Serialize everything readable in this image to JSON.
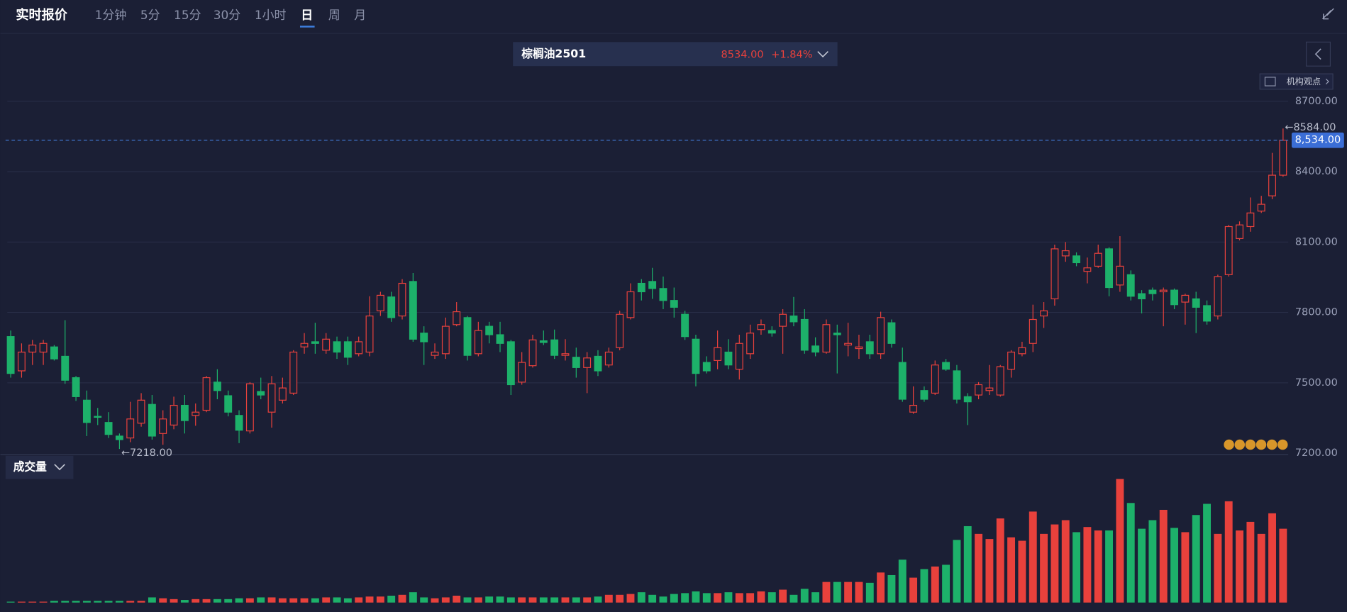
{
  "tabs": {
    "title": "实时报价",
    "items": [
      "1分钟",
      "5分",
      "15分",
      "30分",
      "1小时",
      "日",
      "周",
      "月"
    ],
    "active": 5
  },
  "header": {
    "name": "棕榈油2501",
    "price": "8534.00",
    "change": "+1.84%"
  },
  "opinion_button": "机构观点",
  "volume_label": "成交量",
  "chart_data": {
    "type": "candlestick",
    "up_color": "#e8413c",
    "down_color": "#1db16a",
    "grid": true,
    "ylim": [
      7200,
      8700
    ],
    "yticks": [
      {
        "value": 7200,
        "label": "7200.00"
      },
      {
        "value": 7500,
        "label": "7500.00"
      },
      {
        "value": 7800,
        "label": "7800.00"
      },
      {
        "value": 8100,
        "label": "8100.00"
      },
      {
        "value": 8400,
        "label": "8400.00"
      },
      {
        "value": 8700,
        "label": "8700.00"
      }
    ],
    "last_price": {
      "value": 8534,
      "label": "8,534.00"
    },
    "high_label": {
      "value": 8584,
      "label": "←8584.00"
    },
    "low_label": {
      "value": 7218,
      "label": "←7218.00"
    },
    "open": [
      7697,
      7551,
      7631,
      7631,
      7653,
      7613,
      7522,
      7426,
      7357,
      7331,
      7273,
      7265,
      7328,
      7408,
      7284,
      7320,
      7404,
      7361,
      7383,
      7503,
      7445,
      7361,
      7295,
      7463,
      7375,
      7426,
      7456,
      7653,
      7675,
      7639,
      7675,
      7675,
      7624,
      7631,
      7807,
      7866,
      7785,
      7932,
      7712,
      7617,
      7624,
      7748,
      7778,
      7624,
      7741,
      7705,
      7675,
      7503,
      7573,
      7679,
      7683,
      7617,
      7609,
      7565,
      7613,
      7576,
      7650,
      7778,
      7924,
      7932,
      7902,
      7851,
      7792,
      7686,
      7587,
      7595,
      7631,
      7558,
      7624,
      7727,
      7723,
      7741,
      7785,
      7770,
      7657,
      7631,
      7712,
      7661,
      7646,
      7675,
      7624,
      7756,
      7587,
      7375,
      7467,
      7456,
      7587,
      7551,
      7441,
      7448,
      7467,
      7448,
      7558,
      7624,
      7668,
      7785,
      7858,
      8041,
      8041,
      7975,
      7997,
      8071,
      7917,
      7961,
      7880,
      7895,
      7888,
      7895,
      7844,
      7858,
      7829,
      7785,
      7961,
      8115,
      8166,
      8232,
      8297,
      8385
    ],
    "high": [
      7723,
      7668,
      7683,
      7683,
      7661,
      7767,
      7529,
      7467,
      7393,
      7375,
      7284,
      7419,
      7456,
      7448,
      7383,
      7441,
      7448,
      7412,
      7529,
      7558,
      7467,
      7383,
      7503,
      7522,
      7529,
      7522,
      7639,
      7712,
      7756,
      7712,
      7697,
      7697,
      7697,
      7869,
      7888,
      7888,
      7942,
      7968,
      7741,
      7668,
      7778,
      7844,
      7785,
      7760,
      7760,
      7760,
      7683,
      7631,
      7705,
      7723,
      7727,
      7686,
      7650,
      7631,
      7639,
      7650,
      7807,
      7924,
      7942,
      7990,
      7953,
      7906,
      7807,
      7705,
      7613,
      7723,
      7686,
      7705,
      7748,
      7770,
      7741,
      7814,
      7866,
      7814,
      7694,
      7770,
      7748,
      7756,
      7705,
      7705,
      7803,
      7770,
      7650,
      7485,
      7485,
      7595,
      7602,
      7576,
      7456,
      7503,
      7576,
      7576,
      7639,
      7675,
      7833,
      7844,
      8089,
      8100,
      8056,
      8034,
      8089,
      8078,
      8125,
      7979,
      7895,
      7906,
      7906,
      7902,
      7880,
      7888,
      7851,
      7961,
      8173,
      8188,
      8290,
      8297,
      8480,
      8584
    ],
    "low": [
      7522,
      7522,
      7576,
      7576,
      7595,
      7496,
      7423,
      7273,
      7320,
      7265,
      7218,
      7247,
      7313,
      7258,
      7236,
      7302,
      7284,
      7317,
      7375,
      7430,
      7357,
      7243,
      7284,
      7430,
      7309,
      7412,
      7448,
      7624,
      7624,
      7624,
      7602,
      7576,
      7613,
      7613,
      7785,
      7760,
      7770,
      7675,
      7576,
      7602,
      7602,
      7741,
      7595,
      7613,
      7668,
      7631,
      7448,
      7492,
      7565,
      7661,
      7602,
      7595,
      7522,
      7456,
      7529,
      7565,
      7639,
      7770,
      7851,
      7858,
      7814,
      7778,
      7683,
      7485,
      7540,
      7558,
      7558,
      7514,
      7602,
      7705,
      7697,
      7624,
      7741,
      7624,
      7613,
      7624,
      7540,
      7613,
      7602,
      7602,
      7602,
      7650,
      7419,
      7368,
      7419,
      7448,
      7551,
      7412,
      7320,
      7430,
      7448,
      7441,
      7522,
      7613,
      7631,
      7734,
      7829,
      8016,
      7997,
      7924,
      7990,
      7869,
      7888,
      7851,
      7796,
      7851,
      7741,
      7814,
      7748,
      7712,
      7748,
      7770,
      7953,
      8107,
      8144,
      8224,
      8283,
      8378
    ],
    "close": [
      7540,
      7631,
      7661,
      7668,
      7602,
      7511,
      7441,
      7331,
      7353,
      7280,
      7258,
      7346,
      7426,
      7273,
      7346,
      7404,
      7339,
      7375,
      7522,
      7467,
      7375,
      7298,
      7496,
      7448,
      7496,
      7478,
      7631,
      7668,
      7668,
      7686,
      7631,
      7609,
      7675,
      7785,
      7873,
      7778,
      7924,
      7686,
      7675,
      7631,
      7741,
      7803,
      7617,
      7723,
      7705,
      7668,
      7492,
      7587,
      7683,
      7672,
      7617,
      7624,
      7565,
      7606,
      7551,
      7631,
      7792,
      7888,
      7888,
      7902,
      7851,
      7822,
      7697,
      7540,
      7551,
      7650,
      7576,
      7668,
      7712,
      7748,
      7712,
      7792,
      7760,
      7639,
      7631,
      7748,
      7705,
      7668,
      7653,
      7624,
      7778,
      7668,
      7430,
      7404,
      7430,
      7576,
      7558,
      7430,
      7419,
      7492,
      7478,
      7569,
      7631,
      7650,
      7770,
      7807,
      8071,
      8063,
      8012,
      7990,
      8052,
      7906,
      7997,
      7869,
      7858,
      7880,
      7895,
      7833,
      7873,
      7822,
      7763,
      7953,
      8166,
      8173,
      8224,
      8261,
      8385,
      8534
    ],
    "volume": [
      1,
      1,
      1,
      1,
      2,
      2,
      2,
      2,
      2,
      2,
      2,
      2,
      2,
      6,
      5,
      4,
      3,
      4,
      4,
      4,
      4,
      5,
      5,
      6,
      6,
      5,
      5,
      5,
      5,
      6,
      6,
      5,
      6,
      7,
      7,
      8,
      9,
      12,
      6,
      5,
      6,
      8,
      6,
      6,
      7,
      7,
      6,
      6,
      6,
      6,
      6,
      6,
      6,
      6,
      7,
      9,
      9,
      10,
      12,
      9,
      7,
      10,
      11,
      13,
      11,
      11,
      12,
      11,
      11,
      13,
      12,
      15,
      9,
      16,
      12,
      24,
      24,
      24,
      24,
      23,
      35,
      32,
      50,
      29,
      39,
      42,
      44,
      73,
      89,
      80,
      74,
      98,
      76,
      72,
      106,
      80,
      91,
      96,
      82,
      88,
      84,
      84,
      144,
      116,
      86,
      96,
      108,
      87,
      82,
      102,
      115,
      80,
      118,
      84,
      94,
      80,
      104,
      86
    ]
  }
}
